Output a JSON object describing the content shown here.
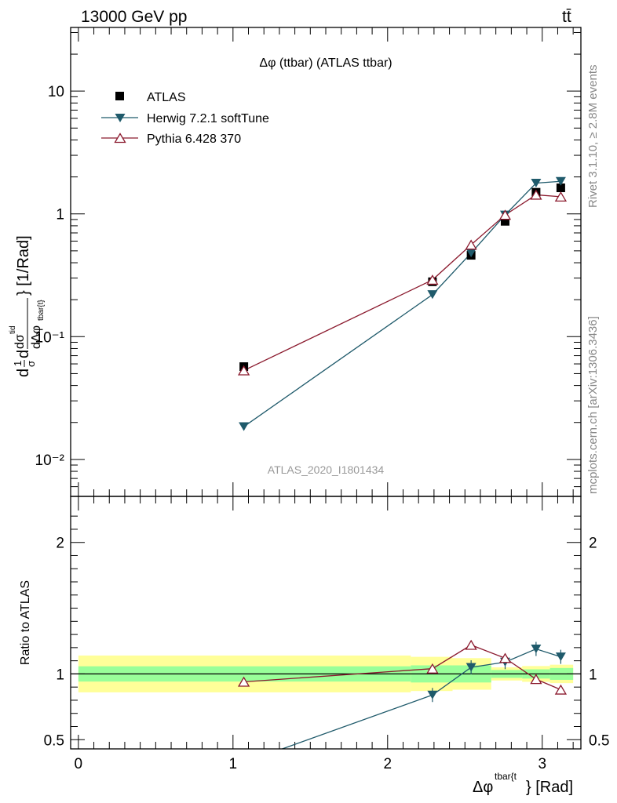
{
  "header": {
    "energy_label": "13000 GeV pp",
    "process_label": "tt̄"
  },
  "side_labels": {
    "rivet": "Rivet 3.1.10, ≥ 2.8M events",
    "mcplots": "mcplots.cern.ch [arXiv:1306.3436]"
  },
  "chart_data": {
    "type": "scatter",
    "title": "Δφ (ttbar) (ATLAS ttbar)",
    "watermark": "ATLAS_2020_I1801434",
    "xlabel": "Δφ",
    "xlabel_superscript": "tbar{t",
    "xlabel_unit": "} [Rad]",
    "ylabel": "d(1/σ)dσ^tid_tbar{t}/dΔφ [1/Rad]",
    "ylabel_parts": {
      "main": "d",
      "frac": "1",
      "den": "σ",
      "dsig": "dσ",
      "sup": "tid",
      "sub": "tbar{t}",
      "dphi": "dΔφ",
      "unit": "} [1/Rad]"
    },
    "ratio_ylabel": "Ratio to ATLAS",
    "xlim": [
      -0.05,
      3.25
    ],
    "ylim": [
      0.005,
      33
    ],
    "yscale": "log",
    "ratio_ylim": [
      0.43,
      2.35
    ],
    "x_ticks": [
      "0",
      "1",
      "2",
      "3"
    ],
    "y_ticks": [
      "10",
      "1",
      "10⁻¹",
      "10⁻²"
    ],
    "ratio_ticks": [
      "0.5",
      "1",
      "2"
    ],
    "ratio_ticks_right": [
      "0.5",
      "1",
      "2"
    ],
    "legend_position": "top-left",
    "bin_edges": [
      0.0,
      2.15,
      2.42,
      2.67,
      2.87,
      3.05,
      3.2
    ],
    "reference": {
      "name": "ATLAS",
      "color": "#000000",
      "x": [
        1.07,
        2.29,
        2.54,
        2.76,
        2.96,
        3.12
      ],
      "y": [
        0.057,
        0.28,
        0.46,
        0.87,
        1.5,
        1.63
      ],
      "band_inner": [
        0.058,
        0.065,
        0.065,
        0.03,
        0.035,
        0.045
      ],
      "band_outer": [
        0.14,
        0.13,
        0.12,
        0.05,
        0.06,
        0.07
      ]
    },
    "series": [
      {
        "name": "Herwig 7.2.1 softTune",
        "color": "#1f5a6b",
        "marker": "triangle-down-filled",
        "x": [
          1.07,
          2.29,
          2.54,
          2.76,
          2.96,
          3.12
        ],
        "y": [
          0.0185,
          0.22,
          0.48,
          0.98,
          1.78,
          1.84
        ],
        "ratio": [
          0.325,
          0.84,
          1.05,
          1.09,
          1.19,
          1.13
        ]
      },
      {
        "name": "Pythia 6.428 370",
        "color": "#8b1a2e",
        "marker": "triangle-up-open",
        "x": [
          1.07,
          2.29,
          2.54,
          2.76,
          2.96,
          3.12
        ],
        "y": [
          0.053,
          0.29,
          0.56,
          0.98,
          1.43,
          1.38
        ],
        "ratio": [
          0.94,
          1.04,
          1.22,
          1.12,
          0.96,
          0.88
        ]
      }
    ]
  }
}
